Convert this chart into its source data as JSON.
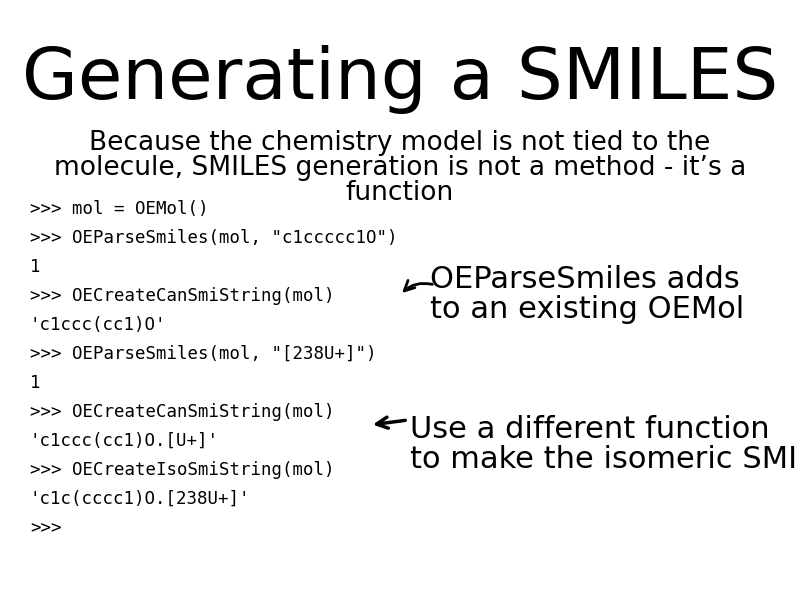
{
  "title": "Generating a SMILES",
  "subtitle_line1": "Because the chemistry model is not tied to the",
  "subtitle_line2": "molecule, SMILES generation is not a method - it’s a",
  "subtitle_line3": "function",
  "code_lines": [
    ">>> mol = OEMol()",
    ">>> OEParseSmiles(mol, \"c1ccccc1O\")",
    "1",
    ">>> OECreateCanSmiString(mol)",
    "'c1ccc(cc1)O'",
    ">>> OEParseSmiles(mol, \"[238U+]\")",
    "1",
    ">>> OECreateCanSmiString(mol)",
    "'c1ccc(cc1)O.[U+]'",
    ">>> OECreateIsoSmiString(mol)",
    "'c1c(cccc1)O.[238U+]'",
    ">>>"
  ],
  "annotation1_line1": "OEParseSmiles adds",
  "annotation1_line2": "to an existing OEMol",
  "annotation2_line1": "Use a different function",
  "annotation2_line2": "to make the isomeric SMILES",
  "bg_color": "#ffffff",
  "text_color": "#000000",
  "title_fontsize": 52,
  "subtitle_fontsize": 19,
  "code_fontsize": 12.5,
  "annotation_fontsize": 22
}
